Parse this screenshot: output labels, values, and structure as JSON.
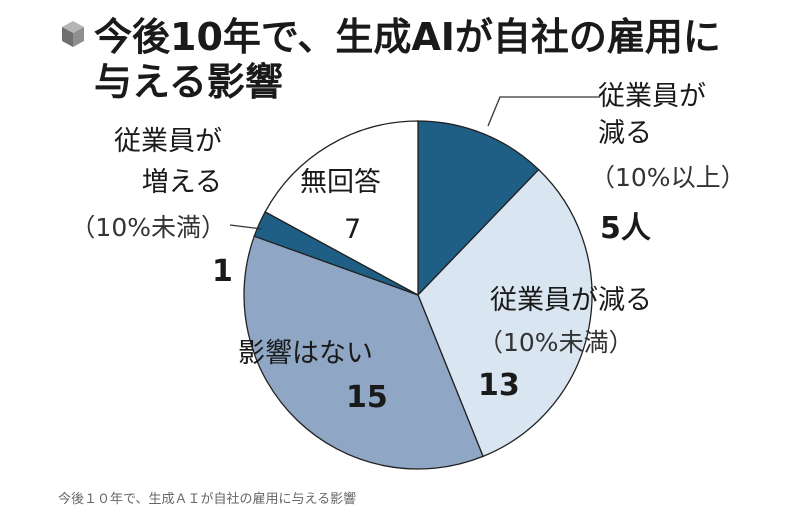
{
  "chart_data": {
    "type": "pie",
    "title_lines": [
      "今後10年で、生成AIが自社の雇用に",
      "与える影響"
    ],
    "slices": [
      {
        "label_lines": [
          "従業員が",
          "減る"
        ],
        "note": "（10%以上）",
        "value": 5,
        "value_text": "5人",
        "color": "#1f5f86"
      },
      {
        "label_lines": [
          "従業員が減る"
        ],
        "note": "（10%未満）",
        "value": 13,
        "value_text": "13",
        "color": "#d9e6f1"
      },
      {
        "label_lines": [
          "影響はない"
        ],
        "note": "",
        "value": 15,
        "value_text": "15",
        "color": "#8fa6c4"
      },
      {
        "label_lines": [
          "従業員が",
          "増える"
        ],
        "note": "（10%未満）",
        "value": 1,
        "value_text": "1",
        "color": "#1f5f86"
      },
      {
        "label_lines": [
          "無回答"
        ],
        "note": "",
        "value": 7,
        "value_text": "7",
        "color": "#ffffff"
      }
    ]
  },
  "caption": "今後１０年で、生成ＡＩが自社の雇用に与える影響"
}
